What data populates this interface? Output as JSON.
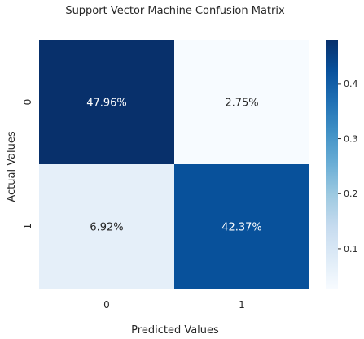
{
  "chart_data": {
    "type": "heatmap",
    "title": "Support Vector Machine Confusion Matrix",
    "xlabel": "Predicted Values",
    "ylabel": "Actual Values",
    "x_categories": [
      "0",
      "1"
    ],
    "y_categories": [
      "0",
      "1"
    ],
    "values": [
      [
        0.4796,
        0.0275
      ],
      [
        0.0692,
        0.4237
      ]
    ],
    "cell_labels": [
      [
        "47.96%",
        "2.75%"
      ],
      [
        "6.92%",
        "42.37%"
      ]
    ],
    "colormap": "Blues",
    "colorbar": {
      "range": [
        0.0275,
        0.4796
      ],
      "ticks": [
        0.1,
        0.2,
        0.3,
        0.4
      ],
      "tick_labels": [
        "0.1",
        "0.2",
        "0.3",
        "0.4"
      ]
    },
    "grid": false,
    "legend": "none"
  }
}
